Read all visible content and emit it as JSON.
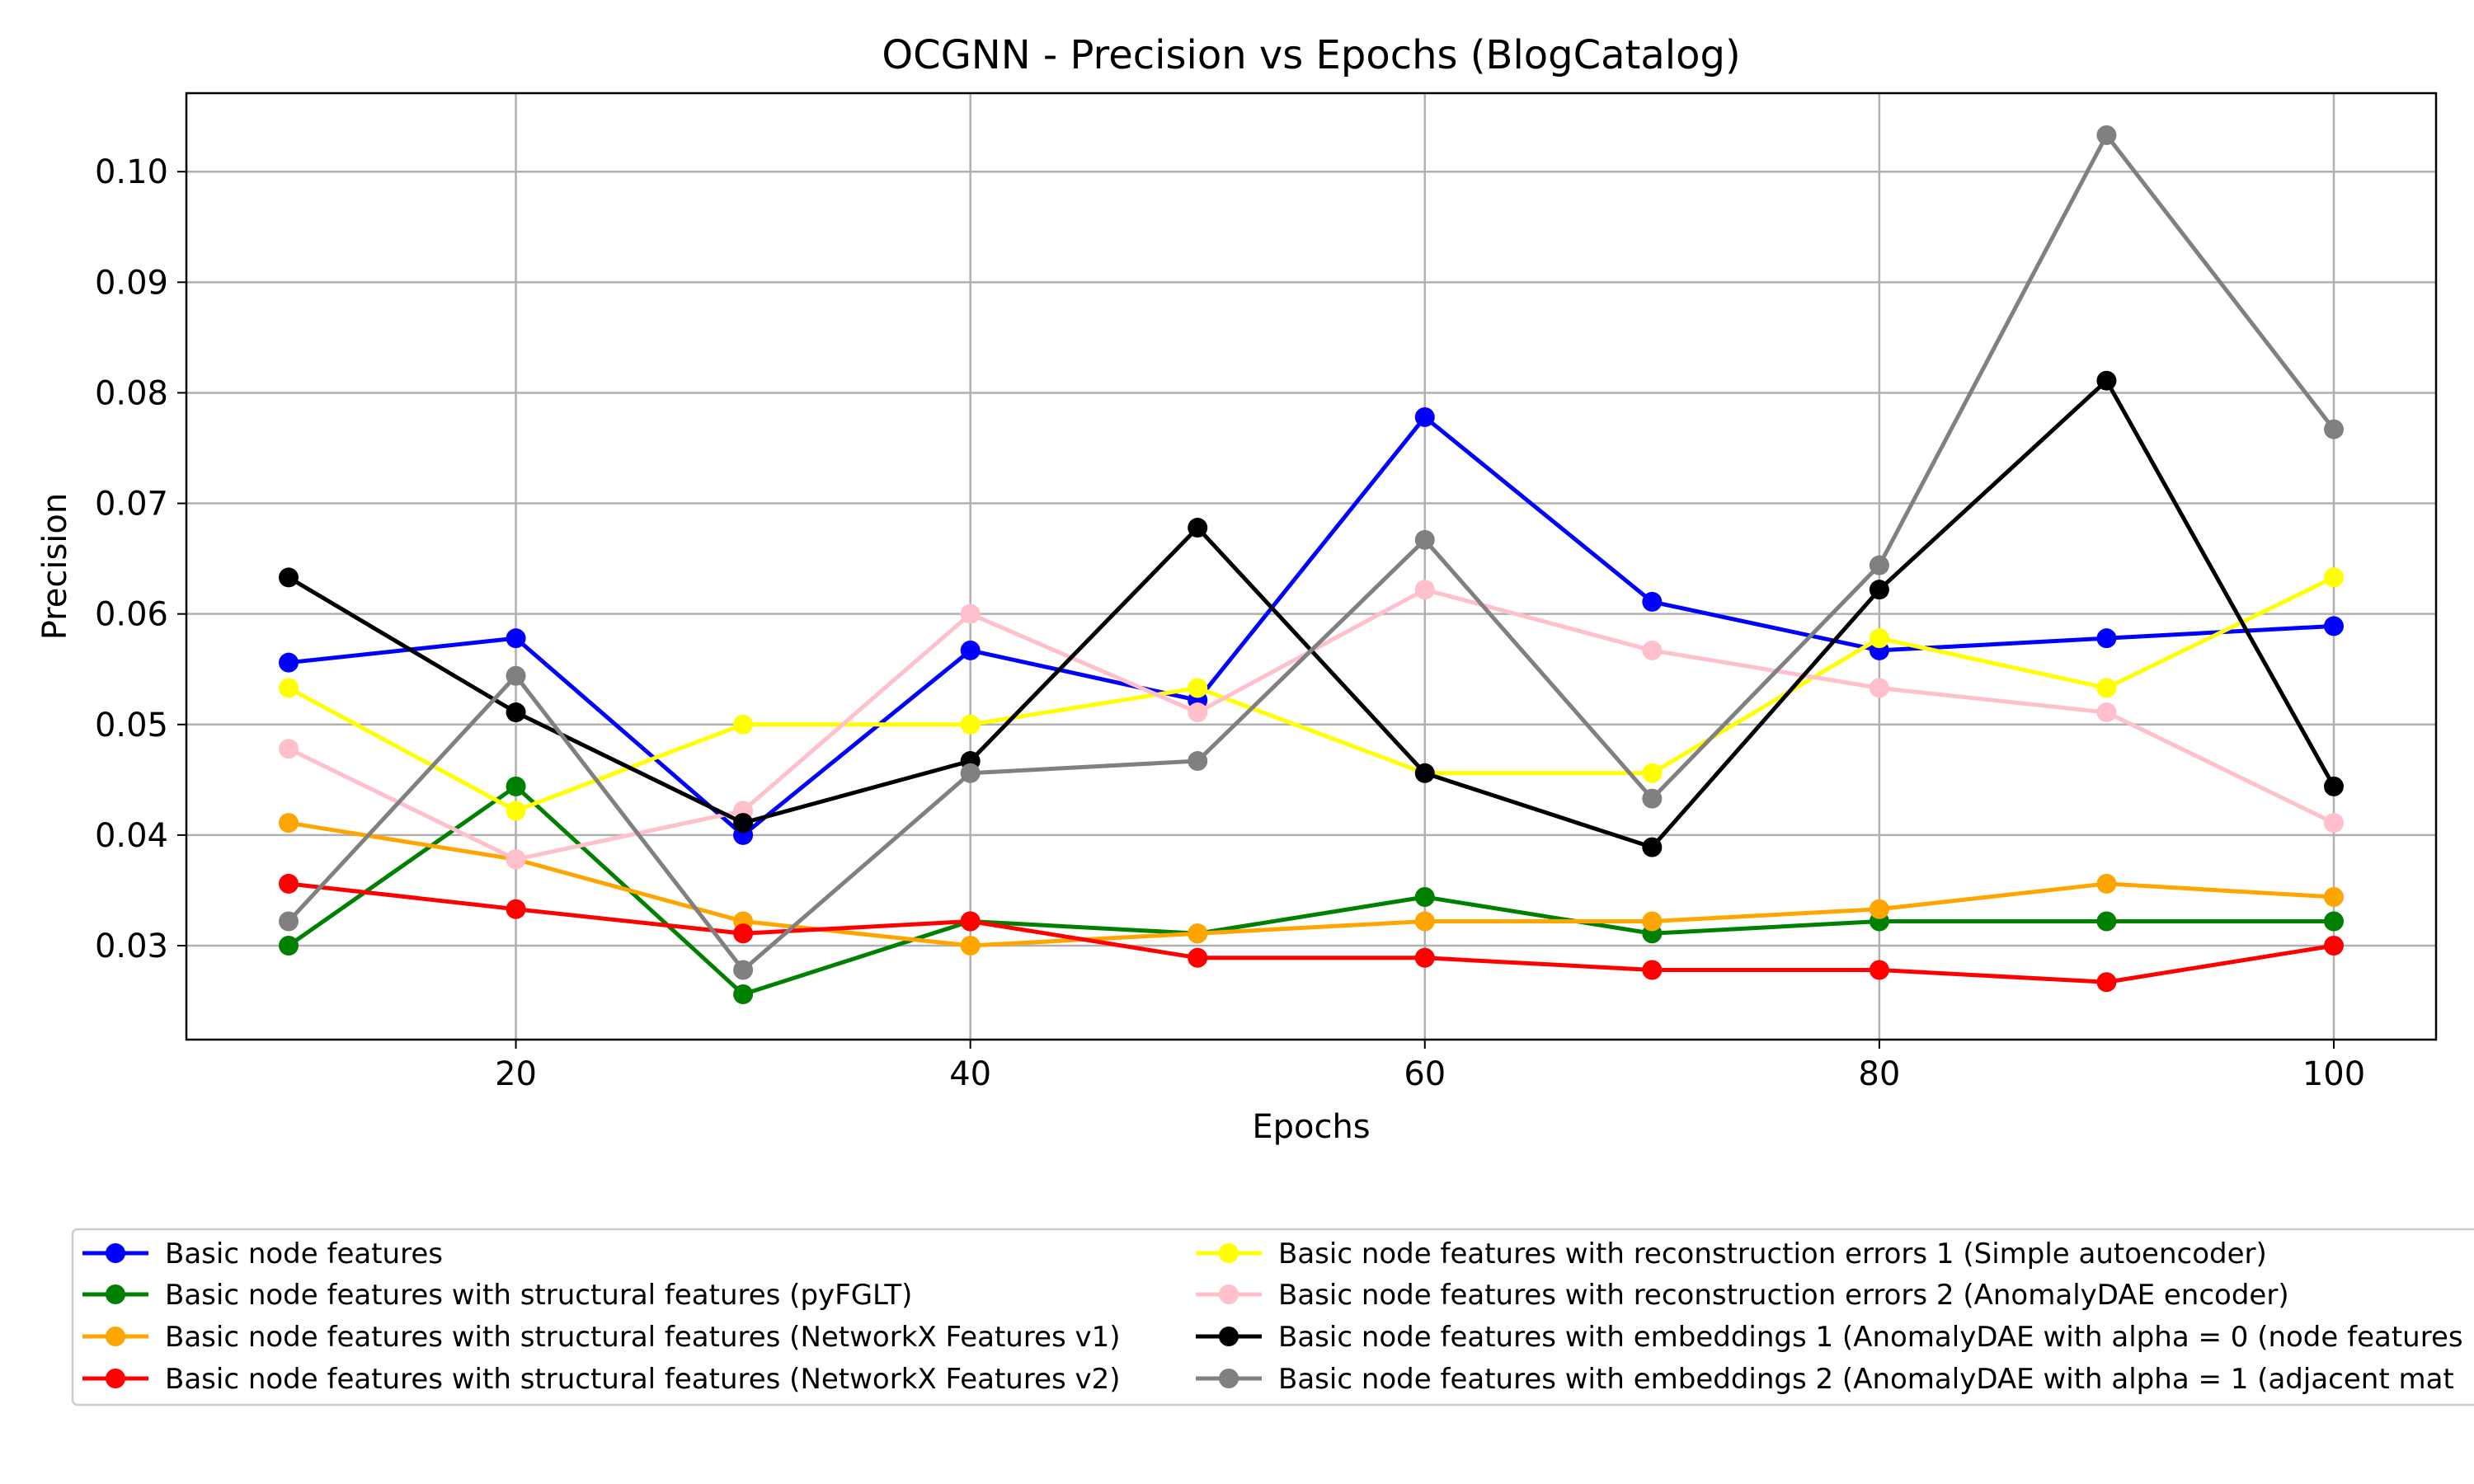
{
  "chart_data": {
    "type": "line",
    "title": "OCGNN - Precision vs Epochs (BlogCatalog)",
    "xlabel": "Epochs",
    "ylabel": "Precision",
    "xlim": [
      5.5,
      104.5
    ],
    "ylim": [
      0.0215,
      0.1071
    ],
    "x_ticks": [
      20,
      40,
      60,
      80,
      100
    ],
    "x_tick_labels": [
      "20",
      "40",
      "60",
      "80",
      "100"
    ],
    "y_ticks": [
      0.03,
      0.04,
      0.05,
      0.06,
      0.07,
      0.08,
      0.09,
      0.1
    ],
    "y_tick_labels": [
      "0.03",
      "0.04",
      "0.05",
      "0.06",
      "0.07",
      "0.08",
      "0.09",
      "0.10"
    ],
    "grid": true,
    "legend_position": "below",
    "x": [
      10,
      20,
      30,
      40,
      50,
      60,
      70,
      80,
      90,
      100
    ],
    "series": [
      {
        "name": "Basic node features",
        "color": "#0000ff",
        "values": [
          0.0556,
          0.0578,
          0.04,
          0.0567,
          0.0522,
          0.0778,
          0.0611,
          0.0567,
          0.0578,
          0.0589
        ]
      },
      {
        "name": "Basic node features with structural features (pyFGLT)",
        "color": "#008000",
        "values": [
          0.03,
          0.0444,
          0.0256,
          0.0322,
          0.0311,
          0.0344,
          0.0311,
          0.0322,
          0.0322,
          0.0322
        ]
      },
      {
        "name": "Basic node features with structural features (NetworkX Features v1)",
        "color": "#ffa500",
        "values": [
          0.0411,
          0.0378,
          0.0322,
          0.03,
          0.0311,
          0.0322,
          0.0322,
          0.0333,
          0.0356,
          0.0344
        ]
      },
      {
        "name": "Basic node features with structural features (NetworkX Features v2)",
        "color": "#ff0000",
        "values": [
          0.0356,
          0.0333,
          0.0311,
          0.0322,
          0.0289,
          0.0289,
          0.0278,
          0.0278,
          0.0267,
          0.03
        ]
      },
      {
        "name": "Basic node features with reconstruction errors 1 (Simple autoencoder)",
        "color": "#ffff00",
        "values": [
          0.0533,
          0.0422,
          0.05,
          0.05,
          0.0533,
          0.0456,
          0.0456,
          0.0578,
          0.0533,
          0.0633
        ]
      },
      {
        "name": "Basic node features with reconstruction errors 2 (AnomalyDAE encoder)",
        "color": "#ffc0cb",
        "values": [
          0.0478,
          0.0378,
          0.0422,
          0.06,
          0.0511,
          0.0622,
          0.0567,
          0.0533,
          0.0511,
          0.0411
        ]
      },
      {
        "name": "Basic node features with embeddings 1 (AnomalyDAE with alpha = 0 (node features",
        "color": "#000000",
        "values": [
          0.0633,
          0.0511,
          0.0411,
          0.0467,
          0.0678,
          0.0456,
          0.0389,
          0.0622,
          0.0811,
          0.0444
        ]
      },
      {
        "name": "Basic node features with embeddings 2 (AnomalyDAE with alpha = 1 (adjacent mat",
        "color": "#808080",
        "values": [
          0.0322,
          0.0544,
          0.0278,
          0.0456,
          0.0467,
          0.0667,
          0.0433,
          0.0644,
          0.1033,
          0.0767
        ]
      }
    ]
  }
}
